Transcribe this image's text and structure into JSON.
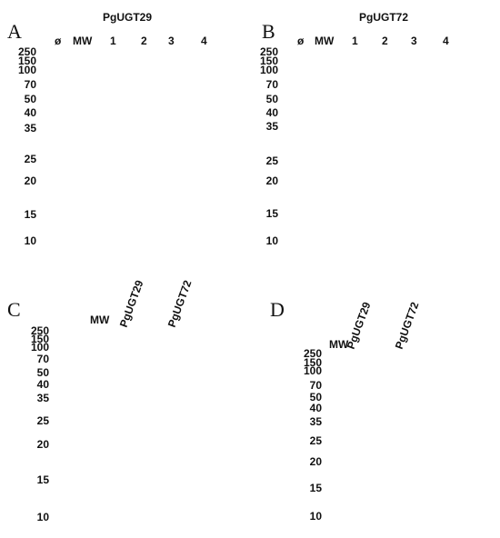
{
  "panels": {
    "A": {
      "letter": "A",
      "title": "PgUGT29",
      "lanes": [
        "ø",
        "MW",
        "1",
        "2",
        "3",
        "4"
      ],
      "mw_labels": [
        "250",
        "150",
        "100",
        "70",
        "50",
        "40",
        "35",
        "25",
        "20",
        "15",
        "10"
      ]
    },
    "B": {
      "letter": "B",
      "title": "PgUGT72",
      "lanes": [
        "ø",
        "MW",
        "1",
        "2",
        "3",
        "4"
      ],
      "mw_labels": [
        "250",
        "150",
        "100",
        "70",
        "50",
        "40",
        "35",
        "25",
        "20",
        "15",
        "10"
      ]
    },
    "C": {
      "letter": "C",
      "lanes": [
        "MW",
        "PgUGT29",
        "PgUGT72"
      ],
      "mw_labels": [
        "250",
        "150",
        "100",
        "70",
        "50",
        "40",
        "35",
        "25",
        "20",
        "15",
        "10"
      ]
    },
    "D": {
      "letter": "D",
      "lanes": [
        "MW",
        "PgUGT29",
        "PgUGT72"
      ],
      "mw_labels": [
        "250",
        "150",
        "100",
        "70",
        "50",
        "40",
        "35",
        "25",
        "20",
        "15",
        "10"
      ]
    }
  },
  "colors": {
    "gel_bg": "#c9cdec",
    "stain": "#1f3fc8",
    "marker_pink": "#c86a9a",
    "arrow": "#e0191b",
    "blot_bg": "#f2f2f2",
    "blot_band": "#111111"
  }
}
